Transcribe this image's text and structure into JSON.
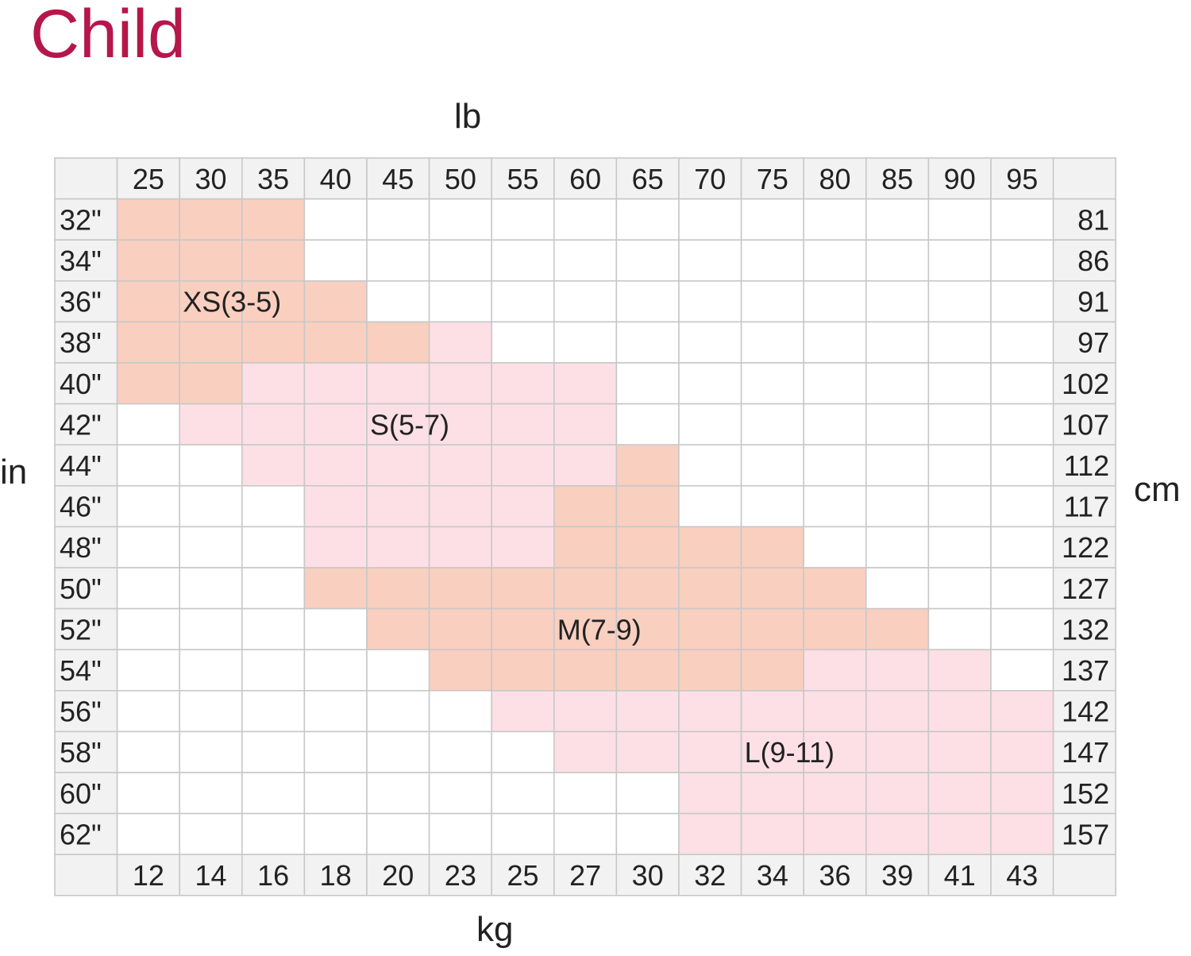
{
  "chart_data": {
    "type": "heatmap",
    "title": "Child",
    "top_axis_label": "lb",
    "bottom_axis_label": "kg",
    "left_axis_label": "in",
    "right_axis_label": "cm",
    "lb": [
      "25",
      "30",
      "35",
      "40",
      "45",
      "50",
      "55",
      "60",
      "65",
      "70",
      "75",
      "80",
      "85",
      "90",
      "95"
    ],
    "kg": [
      "12",
      "14",
      "16",
      "18",
      "20",
      "23",
      "25",
      "27",
      "30",
      "32",
      "34",
      "36",
      "39",
      "41",
      "43"
    ],
    "inches": [
      "32\"",
      "34\"",
      "36\"",
      "38\"",
      "40\"",
      "42\"",
      "44\"",
      "46\"",
      "48\"",
      "50\"",
      "52\"",
      "54\"",
      "56\"",
      "58\"",
      "60\"",
      "62\""
    ],
    "cm": [
      "81",
      "86",
      "91",
      "97",
      "102",
      "107",
      "112",
      "117",
      "122",
      "127",
      "132",
      "137",
      "142",
      "147",
      "152",
      "157"
    ],
    "colors": {
      "peach": "#f9cfc0",
      "pink": "#fce0e5",
      "empty": "#ffffff",
      "header": "#f2f2f2",
      "grid": "#c8c8c8",
      "title": "#b5174b"
    },
    "sizes": [
      {
        "label": "XS(3-5)",
        "color": "peach",
        "cells": {
          "32\"": [
            "25",
            "30",
            "35"
          ],
          "34\"": [
            "25",
            "30",
            "35"
          ],
          "36\"": [
            "25",
            "30",
            "35",
            "40"
          ],
          "38\"": [
            "25",
            "30",
            "35",
            "40",
            "45"
          ],
          "40\"": [
            "25",
            "30"
          ]
        }
      },
      {
        "label": "S(5-7)",
        "color": "pink",
        "cells": {
          "38\"": [
            "50"
          ],
          "40\"": [
            "35",
            "40",
            "45",
            "50",
            "55",
            "60"
          ],
          "42\"": [
            "30",
            "35",
            "40",
            "45",
            "50",
            "55",
            "60"
          ],
          "44\"": [
            "35",
            "40",
            "45",
            "50",
            "55",
            "60"
          ],
          "46\"": [
            "40",
            "45",
            "50",
            "55"
          ],
          "48\"": [
            "40",
            "45",
            "50",
            "55"
          ]
        }
      },
      {
        "label": "M(7-9)",
        "color": "peach",
        "cells": {
          "44\"": [
            "65"
          ],
          "46\"": [
            "60",
            "65"
          ],
          "48\"": [
            "60",
            "65",
            "70",
            "75"
          ],
          "50\"": [
            "40",
            "45",
            "50",
            "55",
            "60",
            "65",
            "70",
            "75",
            "80"
          ],
          "52\"": [
            "45",
            "50",
            "55",
            "60",
            "65",
            "70",
            "75",
            "80",
            "85"
          ],
          "54\"": [
            "50",
            "55",
            "60",
            "65",
            "70",
            "75"
          ]
        }
      },
      {
        "label": "L(9-11)",
        "color": "pink",
        "cells": {
          "54\"": [
            "80",
            "85",
            "90"
          ],
          "56\"": [
            "55",
            "60",
            "65",
            "70",
            "75",
            "80",
            "85",
            "90",
            "95"
          ],
          "58\"": [
            "60",
            "65",
            "70",
            "75",
            "80",
            "85",
            "90",
            "95"
          ],
          "60\"": [
            "70",
            "75",
            "80",
            "85",
            "90",
            "95"
          ],
          "62\"": [
            "70",
            "75",
            "80",
            "85",
            "90",
            "95"
          ]
        }
      }
    ],
    "label_positions": [
      {
        "label": "XS(3-5)",
        "row": "36\"",
        "col": "30"
      },
      {
        "label": "S(5-7)",
        "row": "42\"",
        "col": "45"
      },
      {
        "label": "M(7-9)",
        "row": "52\"",
        "col": "60"
      },
      {
        "label": "L(9-11)",
        "row": "58\"",
        "col": "75"
      }
    ]
  }
}
